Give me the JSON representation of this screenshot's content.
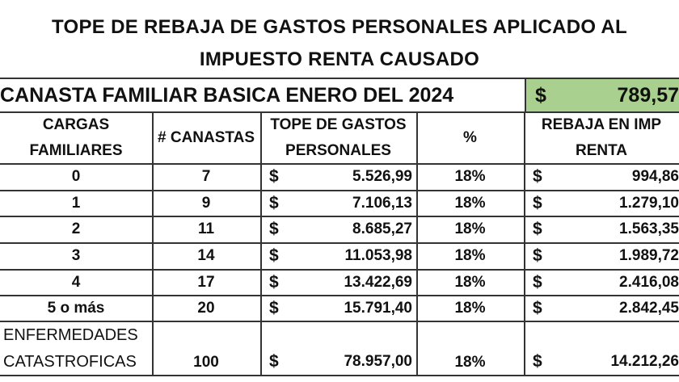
{
  "title": {
    "line1": "TOPE DE REBAJA DE GASTOS PERSONALES APLICADO AL",
    "line2": "IMPUESTO RENTA CAUSADO"
  },
  "canasta": {
    "label": "CANASTA FAMILIAR BASICA ENERO DEL 2024",
    "currency": "$",
    "value": "789,57",
    "highlight_color": "#a9d08e"
  },
  "headers": {
    "cargas": [
      "CARGAS",
      "FAMILIARES"
    ],
    "canastas": "# CANASTAS",
    "tope": [
      "TOPE DE GASTOS",
      "PERSONALES"
    ],
    "pct": "%",
    "rebaja": [
      "REBAJA EN IMP",
      "RENTA"
    ]
  },
  "rows": [
    {
      "cargas": "0",
      "canastas": "7",
      "cur1": "$",
      "tope": "5.526,99",
      "pct": "18%",
      "cur2": "$",
      "rebaja": "994,86"
    },
    {
      "cargas": "1",
      "canastas": "9",
      "cur1": "$",
      "tope": "7.106,13",
      "pct": "18%",
      "cur2": "$",
      "rebaja": "1.279,10"
    },
    {
      "cargas": "2",
      "canastas": "11",
      "cur1": "$",
      "tope": "8.685,27",
      "pct": "18%",
      "cur2": "$",
      "rebaja": "1.563,35"
    },
    {
      "cargas": "3",
      "canastas": "14",
      "cur1": "$",
      "tope": "11.053,98",
      "pct": "18%",
      "cur2": "$",
      "rebaja": "1.989,72"
    },
    {
      "cargas": "4",
      "canastas": "17",
      "cur1": "$",
      "tope": "13.422,69",
      "pct": "18%",
      "cur2": "$",
      "rebaja": "2.416,08"
    },
    {
      "cargas": "5 o más",
      "canastas": "20",
      "cur1": "$",
      "tope": "15.791,40",
      "pct": "18%",
      "cur2": "$",
      "rebaja": "2.842,45"
    }
  ],
  "catastrofica": {
    "label": [
      "ENFERMEDADES",
      "CATASTROFICAS"
    ],
    "canastas": "100",
    "cur1": "$",
    "tope": "78.957,00",
    "pct": "18%",
    "cur2": "$",
    "rebaja": "14.212,26"
  }
}
